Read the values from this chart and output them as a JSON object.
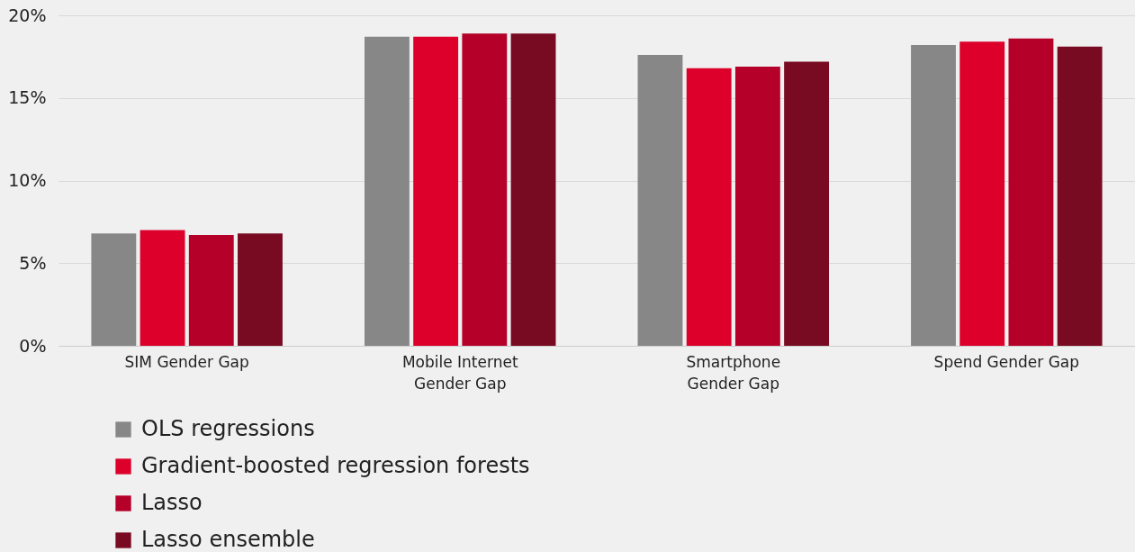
{
  "chart_data": {
    "type": "bar",
    "categories": [
      "SIM Gender Gap",
      "Mobile Internet\nGender Gap",
      "Smartphone\nGender Gap",
      "Spend Gender Gap"
    ],
    "series": [
      {
        "name": "OLS regressions",
        "color": "#878787",
        "values": [
          6.8,
          18.7,
          17.6,
          18.2
        ]
      },
      {
        "name": "Gradient-boosted regression forests",
        "color": "#dc002b",
        "values": [
          7.0,
          18.7,
          16.8,
          18.4
        ]
      },
      {
        "name": "Lasso",
        "color": "#b5002a",
        "values": [
          6.7,
          18.9,
          16.9,
          18.6
        ]
      },
      {
        "name": "Lasso ensemble",
        "color": "#780a21",
        "values": [
          6.8,
          18.9,
          17.2,
          18.1
        ]
      }
    ],
    "ylim": [
      0,
      20
    ],
    "yticks": [
      {
        "value": 0,
        "label": "0%"
      },
      {
        "value": 5,
        "label": "5%"
      },
      {
        "value": 10,
        "label": "10%"
      },
      {
        "value": 15,
        "label": "15%"
      },
      {
        "value": 20,
        "label": "20%"
      }
    ],
    "grid": "y",
    "legend": "bottom left"
  }
}
